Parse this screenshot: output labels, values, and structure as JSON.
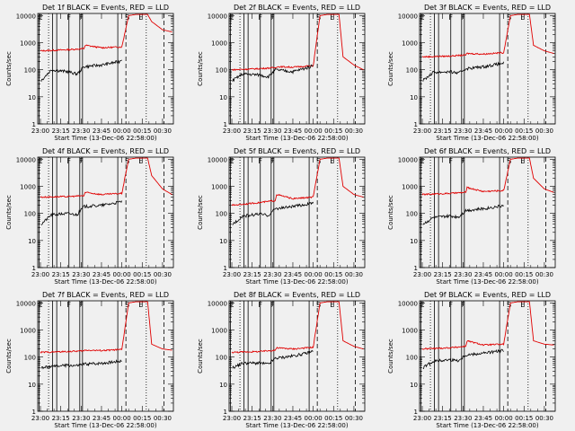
{
  "figure": {
    "xlabel": "Start Time (13-Dec-06 22:58:00)",
    "ylabel": "Counts/sec",
    "x_ticks": [
      "23:00",
      "23:15",
      "23:30",
      "23:45",
      "00:00",
      "00:15",
      "00:30"
    ],
    "x_tick_minutes": [
      0,
      15,
      30,
      45,
      60,
      75,
      90
    ],
    "x_range_minutes": [
      -2,
      98
    ],
    "y_ticks": [
      "1",
      "10",
      "100",
      "1000",
      "10000"
    ],
    "y_tick_values": [
      1,
      10,
      100,
      1000,
      10000
    ],
    "y_range": [
      1,
      12000
    ],
    "y_scale": "log",
    "colors": {
      "events": "#000000",
      "lld": "#e00000",
      "background": "#f0f0f0"
    }
  },
  "chart_data": [
    {
      "type": "line",
      "title": "Det 1f BLACK = Events, RED = LLD",
      "markers": [
        "E",
        "F",
        "F",
        "S",
        "E"
      ],
      "events": [
        [
          0.5,
          40
        ],
        [
          8,
          100
        ],
        [
          20,
          85
        ],
        [
          27,
          70
        ],
        [
          32,
          130
        ],
        [
          45,
          150
        ],
        [
          58,
          200
        ],
        [
          60,
          250
        ]
      ],
      "lld": [
        [
          0,
          500
        ],
        [
          20,
          550
        ],
        [
          32,
          600
        ],
        [
          33,
          800
        ],
        [
          45,
          650
        ],
        [
          60,
          700
        ],
        [
          65,
          10000
        ],
        [
          70,
          11000
        ],
        [
          79,
          11000
        ],
        [
          82,
          6000
        ],
        [
          90,
          3000
        ],
        [
          97,
          2500
        ]
      ]
    },
    {
      "type": "line",
      "title": "Det 2f BLACK = Events, RED = LLD",
      "markers": [
        "E",
        "F",
        "F",
        "S",
        "E"
      ],
      "events": [
        [
          0.5,
          40
        ],
        [
          8,
          70
        ],
        [
          20,
          65
        ],
        [
          27,
          55
        ],
        [
          32,
          100
        ],
        [
          45,
          85
        ],
        [
          58,
          130
        ],
        [
          60,
          160
        ]
      ],
      "lld": [
        [
          0,
          100
        ],
        [
          20,
          110
        ],
        [
          32,
          120
        ],
        [
          33,
          130
        ],
        [
          45,
          125
        ],
        [
          60,
          140
        ],
        [
          65,
          10000
        ],
        [
          70,
          11000
        ],
        [
          79,
          11000
        ],
        [
          82,
          300
        ],
        [
          90,
          150
        ],
        [
          97,
          100
        ]
      ]
    },
    {
      "type": "line",
      "title": "Det 3f BLACK = Events, RED = LLD",
      "markers": [
        "E",
        "F",
        "F",
        "S",
        "E"
      ],
      "events": [
        [
          0.5,
          40
        ],
        [
          8,
          80
        ],
        [
          20,
          85
        ],
        [
          27,
          75
        ],
        [
          32,
          110
        ],
        [
          45,
          130
        ],
        [
          58,
          170
        ],
        [
          60,
          180
        ]
      ],
      "lld": [
        [
          0,
          300
        ],
        [
          20,
          320
        ],
        [
          32,
          350
        ],
        [
          33,
          400
        ],
        [
          45,
          380
        ],
        [
          60,
          430
        ],
        [
          65,
          10000
        ],
        [
          70,
          11000
        ],
        [
          79,
          11000
        ],
        [
          82,
          800
        ],
        [
          90,
          500
        ],
        [
          97,
          400
        ]
      ]
    },
    {
      "type": "line",
      "title": "Det 4f BLACK = Events, RED = LLD",
      "markers": [
        "E",
        "F",
        "F",
        "S",
        "E"
      ],
      "events": [
        [
          0.5,
          40
        ],
        [
          8,
          90
        ],
        [
          20,
          100
        ],
        [
          27,
          90
        ],
        [
          32,
          180
        ],
        [
          45,
          200
        ],
        [
          58,
          260
        ],
        [
          60,
          280
        ]
      ],
      "lld": [
        [
          0,
          400
        ],
        [
          20,
          420
        ],
        [
          32,
          450
        ],
        [
          33,
          600
        ],
        [
          45,
          500
        ],
        [
          60,
          550
        ],
        [
          65,
          10000
        ],
        [
          70,
          11000
        ],
        [
          79,
          11000
        ],
        [
          82,
          2500
        ],
        [
          90,
          800
        ],
        [
          97,
          500
        ]
      ]
    },
    {
      "type": "line",
      "title": "Det 5f BLACK = Events, RED = LLD",
      "markers": [
        "E",
        "F",
        "F",
        "S",
        "E"
      ],
      "events": [
        [
          0.5,
          40
        ],
        [
          8,
          80
        ],
        [
          20,
          95
        ],
        [
          27,
          85
        ],
        [
          32,
          150
        ],
        [
          45,
          180
        ],
        [
          58,
          230
        ],
        [
          60,
          260
        ]
      ],
      "lld": [
        [
          0,
          200
        ],
        [
          20,
          250
        ],
        [
          32,
          300
        ],
        [
          33,
          500
        ],
        [
          45,
          350
        ],
        [
          60,
          400
        ],
        [
          65,
          10000
        ],
        [
          70,
          11000
        ],
        [
          79,
          11000
        ],
        [
          82,
          1000
        ],
        [
          90,
          500
        ],
        [
          97,
          400
        ]
      ]
    },
    {
      "type": "line",
      "title": "Det 6f BLACK = Events, RED = LLD",
      "markers": [
        "E",
        "F",
        "F",
        "S",
        "E"
      ],
      "events": [
        [
          0.5,
          40
        ],
        [
          8,
          70
        ],
        [
          20,
          80
        ],
        [
          27,
          75
        ],
        [
          32,
          130
        ],
        [
          45,
          150
        ],
        [
          58,
          190
        ],
        [
          60,
          200
        ]
      ],
      "lld": [
        [
          0,
          500
        ],
        [
          20,
          550
        ],
        [
          32,
          600
        ],
        [
          33,
          900
        ],
        [
          45,
          650
        ],
        [
          60,
          700
        ],
        [
          65,
          10000
        ],
        [
          70,
          11000
        ],
        [
          79,
          11000
        ],
        [
          82,
          2000
        ],
        [
          90,
          800
        ],
        [
          97,
          600
        ]
      ]
    },
    {
      "type": "line",
      "title": "Det 7f BLACK = Events, RED = LLD",
      "markers": [
        "E",
        "F",
        "F",
        "S",
        "E"
      ],
      "events": [
        [
          0.5,
          40
        ],
        [
          8,
          45
        ],
        [
          20,
          50
        ],
        [
          27,
          48
        ],
        [
          32,
          55
        ],
        [
          45,
          60
        ],
        [
          58,
          70
        ],
        [
          60,
          75
        ]
      ],
      "lld": [
        [
          0,
          150
        ],
        [
          20,
          160
        ],
        [
          32,
          170
        ],
        [
          33,
          180
        ],
        [
          45,
          175
        ],
        [
          60,
          190
        ],
        [
          65,
          10000
        ],
        [
          70,
          11000
        ],
        [
          79,
          11000
        ],
        [
          82,
          300
        ],
        [
          90,
          200
        ],
        [
          97,
          180
        ]
      ]
    },
    {
      "type": "line",
      "title": "Det 8f BLACK = Events, RED = LLD",
      "markers": [
        "E",
        "F",
        "F",
        "S",
        "E"
      ],
      "events": [
        [
          0.5,
          40
        ],
        [
          8,
          60
        ],
        [
          20,
          60
        ],
        [
          27,
          55
        ],
        [
          32,
          90
        ],
        [
          45,
          110
        ],
        [
          58,
          150
        ],
        [
          60,
          180
        ]
      ],
      "lld": [
        [
          0,
          150
        ],
        [
          20,
          160
        ],
        [
          32,
          180
        ],
        [
          33,
          220
        ],
        [
          45,
          200
        ],
        [
          60,
          230
        ],
        [
          65,
          10000
        ],
        [
          70,
          11000
        ],
        [
          79,
          11000
        ],
        [
          82,
          400
        ],
        [
          90,
          250
        ],
        [
          97,
          200
        ]
      ]
    },
    {
      "type": "line",
      "title": "Det 9f BLACK = Events, RED = LLD",
      "markers": [
        "E",
        "F",
        "F",
        "S",
        "E"
      ],
      "events": [
        [
          0.5,
          40
        ],
        [
          8,
          70
        ],
        [
          20,
          80
        ],
        [
          27,
          75
        ],
        [
          32,
          120
        ],
        [
          45,
          140
        ],
        [
          58,
          170
        ],
        [
          60,
          180
        ]
      ],
      "lld": [
        [
          0,
          200
        ],
        [
          20,
          220
        ],
        [
          32,
          250
        ],
        [
          33,
          400
        ],
        [
          45,
          280
        ],
        [
          60,
          300
        ],
        [
          65,
          10000
        ],
        [
          70,
          11000
        ],
        [
          79,
          11000
        ],
        [
          82,
          400
        ],
        [
          90,
          300
        ],
        [
          97,
          280
        ]
      ]
    }
  ]
}
